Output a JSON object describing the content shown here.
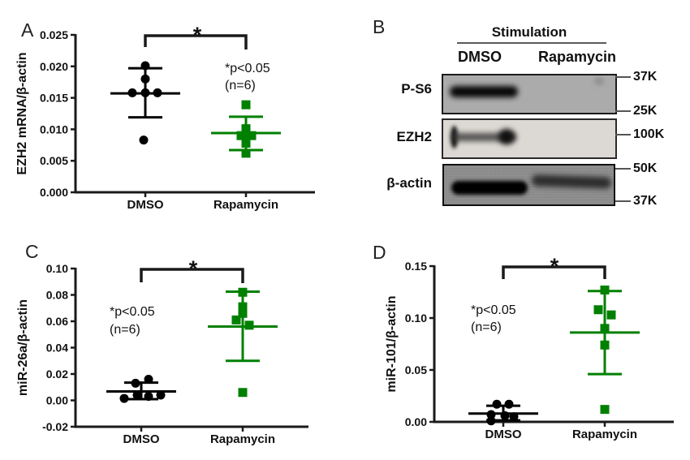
{
  "panels": {
    "a": "A",
    "b": "B",
    "c": "C",
    "d": "D"
  },
  "colors": {
    "black_series": "#000000",
    "green_series": "#008000",
    "axis": "#1a1a1a"
  },
  "blot": {
    "header": "Stimulation",
    "columns": [
      "DMSO",
      "Rapamycin"
    ],
    "rows": [
      {
        "label": "P-S6"
      },
      {
        "label": "EZH2"
      },
      {
        "label": "β-actin"
      }
    ],
    "markers": [
      "37K",
      "25K",
      "100K",
      "50K",
      "37K"
    ],
    "bands": [
      {
        "row": "P-S6",
        "DMSO": "strong",
        "Rapamycin": "absent"
      },
      {
        "row": "EZH2",
        "DMSO": "strong",
        "Rapamycin": "absent"
      },
      {
        "row": "β-actin",
        "DMSO": "strong",
        "Rapamycin": "moderate"
      }
    ]
  },
  "chart_data": [
    {
      "panel": "A",
      "type": "scatter",
      "ylabel": "EZH2 mRNA/β-actin",
      "ylim": [
        0,
        0.025
      ],
      "yticks": [
        {
          "v": 0.0,
          "label": "0.000"
        },
        {
          "v": 0.005,
          "label": "0.005"
        },
        {
          "v": 0.01,
          "label": "0.010"
        },
        {
          "v": 0.015,
          "label": "0.015"
        },
        {
          "v": 0.02,
          "label": "0.020"
        },
        {
          "v": 0.025,
          "label": "0.025"
        }
      ],
      "categories": [
        "DMSO",
        "Rapamycin"
      ],
      "significance": {
        "label": "*",
        "note": "*p<0.05",
        "n_note": "(n=6)"
      },
      "groups": [
        {
          "name": "DMSO",
          "marker": "circle",
          "color": "#000000",
          "mean": 0.0157,
          "err_low": 0.0119,
          "err_high": 0.0197,
          "points": [
            {
              "dx": 0,
              "y": 0.0201
            },
            {
              "dx": 0,
              "y": 0.018
            },
            {
              "dx": -16,
              "y": 0.0158
            },
            {
              "dx": 0,
              "y": 0.0158
            },
            {
              "dx": 15,
              "y": 0.0158
            },
            {
              "dx": -2,
              "y": 0.0083
            }
          ]
        },
        {
          "name": "Rapamycin",
          "marker": "square",
          "color": "#008000",
          "mean": 0.0094,
          "err_low": 0.0067,
          "err_high": 0.012,
          "points": [
            {
              "dx": 0,
              "y": 0.0139
            },
            {
              "dx": 0,
              "y": 0.0101
            },
            {
              "dx": -6,
              "y": 0.009
            },
            {
              "dx": 7,
              "y": 0.009
            },
            {
              "dx": 0,
              "y": 0.0078
            },
            {
              "dx": 0,
              "y": 0.0062
            }
          ]
        }
      ]
    },
    {
      "panel": "C",
      "type": "scatter",
      "ylabel": "miR-26a/β-actin",
      "ylim": [
        -0.02,
        0.1
      ],
      "yticks": [
        {
          "v": -0.02,
          "label": "-0.02"
        },
        {
          "v": 0.0,
          "label": "0.00"
        },
        {
          "v": 0.02,
          "label": "0.02"
        },
        {
          "v": 0.04,
          "label": "0.04"
        },
        {
          "v": 0.06,
          "label": "0.06"
        },
        {
          "v": 0.08,
          "label": "0.08"
        },
        {
          "v": 0.1,
          "label": "0.10"
        }
      ],
      "categories": [
        "DMSO",
        "Rapamycin"
      ],
      "significance": {
        "label": "*",
        "note": "*p<0.05",
        "n_note": "(n=6)"
      },
      "groups": [
        {
          "name": "DMSO",
          "marker": "circle",
          "color": "#000000",
          "mean": 0.0068,
          "err_low": 0.0009,
          "err_high": 0.0135,
          "points": [
            {
              "dx": -7,
              "y": 0.013
            },
            {
              "dx": 9,
              "y": 0.016
            },
            {
              "dx": -21,
              "y": 0.0015
            },
            {
              "dx": -5,
              "y": 0.004
            },
            {
              "dx": 9,
              "y": 0.003
            },
            {
              "dx": 24,
              "y": 0.004
            }
          ]
        },
        {
          "name": "Rapamycin",
          "marker": "square",
          "color": "#008000",
          "mean": 0.056,
          "err_low": 0.03,
          "err_high": 0.0825,
          "points": [
            {
              "dx": 0,
              "y": 0.082
            },
            {
              "dx": 0,
              "y": 0.071
            },
            {
              "dx": 0,
              "y": 0.066
            },
            {
              "dx": -8,
              "y": 0.061
            },
            {
              "dx": 8,
              "y": 0.057
            },
            {
              "dx": 0,
              "y": 0.006
            }
          ]
        }
      ]
    },
    {
      "panel": "D",
      "type": "scatter",
      "ylabel": "miR-101/β-actin",
      "ylim": [
        0,
        0.15
      ],
      "yticks": [
        {
          "v": 0.0,
          "label": "0.00"
        },
        {
          "v": 0.05,
          "label": "0.05"
        },
        {
          "v": 0.1,
          "label": "0.10"
        },
        {
          "v": 0.15,
          "label": "0.15"
        }
      ],
      "categories": [
        "DMSO",
        "Rapamycin"
      ],
      "significance": {
        "label": "*",
        "note": "*p<0.05",
        "n_note": "(n=6)"
      },
      "groups": [
        {
          "name": "DMSO",
          "marker": "circle",
          "color": "#000000",
          "mean": 0.008,
          "err_low": 0.0015,
          "err_high": 0.0155,
          "points": [
            {
              "dx": -8,
              "y": 0.017
            },
            {
              "dx": 7,
              "y": 0.017
            },
            {
              "dx": -15,
              "y": 0.007
            },
            {
              "dx": 2,
              "y": 0.006
            },
            {
              "dx": 13,
              "y": 0.005
            },
            {
              "dx": -15,
              "y": 0.001
            }
          ]
        },
        {
          "name": "Rapamycin",
          "marker": "square",
          "color": "#008000",
          "mean": 0.086,
          "err_low": 0.046,
          "err_high": 0.126,
          "points": [
            {
              "dx": 0,
              "y": 0.127
            },
            {
              "dx": -8,
              "y": 0.108
            },
            {
              "dx": 8,
              "y": 0.103
            },
            {
              "dx": 0,
              "y": 0.09
            },
            {
              "dx": 0,
              "y": 0.074
            },
            {
              "dx": 0,
              "y": 0.012
            }
          ]
        }
      ]
    }
  ]
}
